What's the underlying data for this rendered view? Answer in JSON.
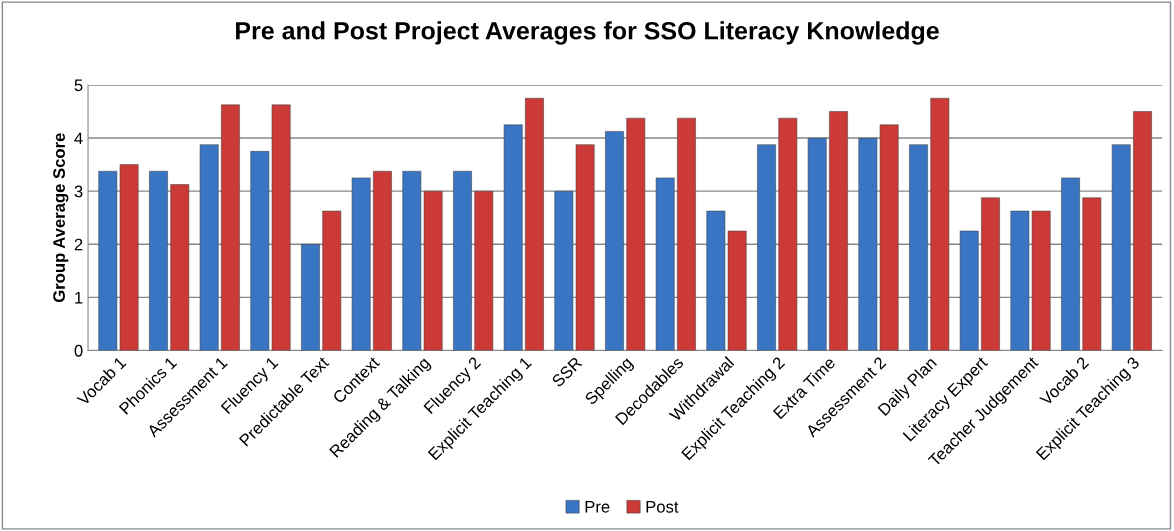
{
  "chart_data": {
    "type": "bar",
    "title": "Pre and Post Project Averages for SSO Literacy Knowledge",
    "ylabel": "Group Average Score",
    "categories": [
      "Vocab 1",
      "Phonics 1",
      "Assessment 1",
      "Fluency 1",
      "Predictable Text",
      "Context",
      "Reading & Talking",
      "Fluency 2",
      "Explicit Teaching 1",
      "SSR",
      "Spelling",
      "Decodables",
      "Withdrawal",
      "Explicit Teaching 2",
      "Extra Time",
      "Assessment 2",
      "Daily Plan",
      "Literacy Expert",
      "Teacher Judgement",
      "Vocab 2",
      "Explicit Teaching 3"
    ],
    "series": [
      {
        "name": "Pre",
        "color": "#3a75c4",
        "values": [
          3.375,
          3.375,
          3.875,
          3.75,
          2,
          3.25,
          3.375,
          3.375,
          4.25,
          3,
          4.125,
          3.25,
          2.625,
          3.875,
          4,
          4,
          3.875,
          2.25,
          2.625,
          3.25,
          3.875
        ]
      },
      {
        "name": "Post",
        "color": "#cc3a38",
        "values": [
          3.5,
          3.125,
          4.625,
          4.625,
          2.625,
          3.375,
          3,
          3,
          4.75,
          3.875,
          4.375,
          4.375,
          2.25,
          4.375,
          4.5,
          4.25,
          4.75,
          2.875,
          2.625,
          2.875,
          4.5
        ]
      }
    ],
    "ylim": [
      0,
      5
    ],
    "yticks": [
      0,
      1,
      2,
      3,
      4,
      5
    ],
    "grid": "y",
    "legend": "bottom"
  }
}
